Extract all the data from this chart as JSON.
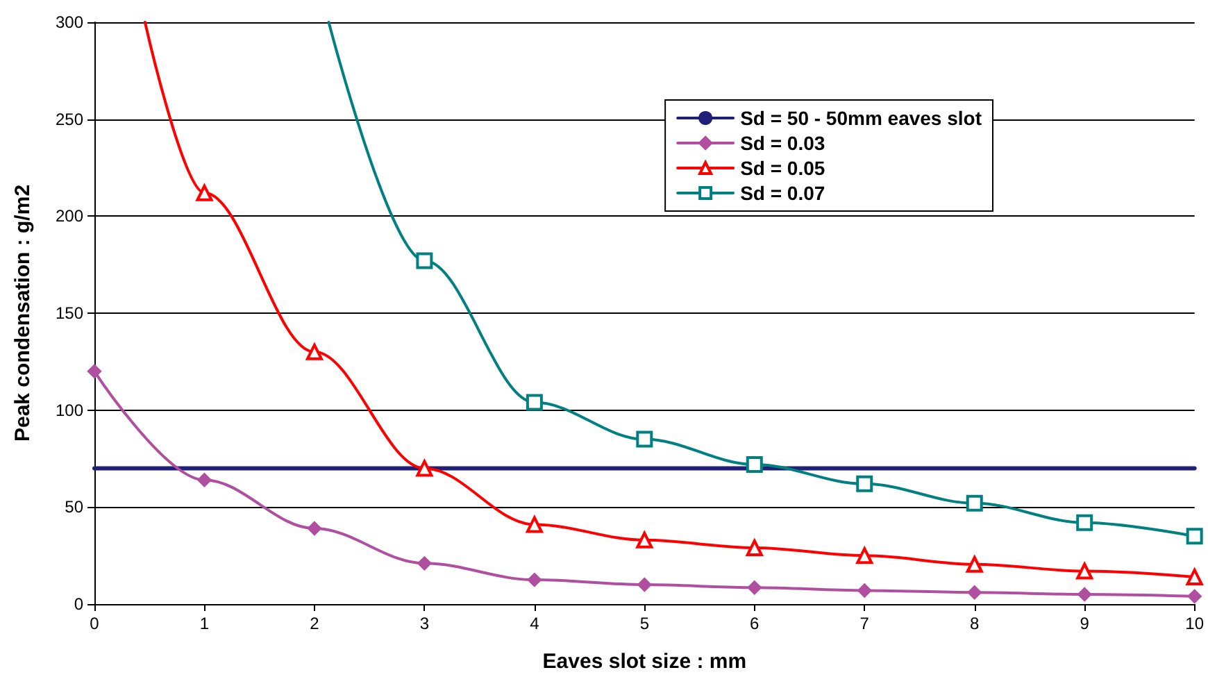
{
  "chart_data": {
    "type": "line",
    "xlabel": "Eaves slot size : mm",
    "ylabel": "Peak condensation : g/m2",
    "xlim": [
      0,
      10
    ],
    "xticks": [
      0,
      1,
      2,
      3,
      4,
      5,
      6,
      7,
      8,
      9,
      10
    ],
    "ylim": [
      0,
      300
    ],
    "yticks": [
      0,
      50,
      100,
      150,
      200,
      250,
      300
    ],
    "grid": "y",
    "legend": "top right",
    "series": [
      {
        "name": "Sd = 50 - 50mm eaves slot",
        "color": "#1f1f78",
        "marker": "none",
        "x": [
          0,
          10
        ],
        "values": [
          70,
          70
        ]
      },
      {
        "name": "Sd = 0.03",
        "color": "#b04fa0",
        "marker": "diamond",
        "x": [
          0,
          1,
          2,
          3,
          4,
          5,
          6,
          7,
          8,
          9,
          10
        ],
        "values": [
          120,
          64,
          39,
          21,
          12.5,
          10,
          8.5,
          7,
          6,
          5,
          4
        ]
      },
      {
        "name": "Sd = 0.05",
        "color": "#ff0000",
        "marker": "triangle",
        "x": [
          0.46,
          1,
          2,
          3,
          4,
          5,
          6,
          7,
          8,
          9,
          10
        ],
        "values": [
          300,
          212,
          130,
          70,
          41,
          33,
          29,
          25,
          20.5,
          17,
          14
        ]
      },
      {
        "name": "Sd = 0.07",
        "color": "#008080",
        "marker": "square",
        "x": [
          2.13,
          3,
          4,
          5,
          6,
          7,
          8,
          9,
          10
        ],
        "values": [
          300,
          177,
          104,
          85,
          72,
          62,
          52,
          42,
          35
        ]
      }
    ]
  }
}
